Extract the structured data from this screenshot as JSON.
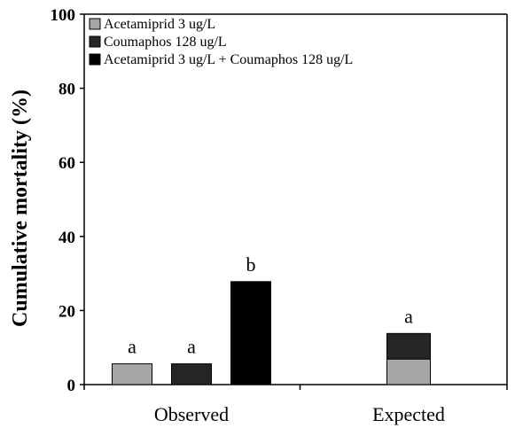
{
  "chart_data": {
    "type": "bar",
    "ylabel": "Cumulative mortality  (%)",
    "xlabel": "",
    "title": "",
    "ylim": [
      0,
      100
    ],
    "yticks": [
      0,
      20,
      40,
      60,
      80,
      100
    ],
    "categories": [
      "Observed",
      "Expected"
    ],
    "legend_position": "top-left",
    "series": [
      {
        "name": "Acetamiprid 3 ug/L",
        "color": "#a6a6a6"
      },
      {
        "name": "Coumaphos 128 ug/L",
        "color": "#262626"
      },
      {
        "name": "Acetamiprid 3 ug/L + Coumaphos 128 ug/L",
        "color": "#000000"
      }
    ],
    "bars": [
      {
        "category": "Observed",
        "series": "Acetamiprid 3 ug/L",
        "value": 5.6,
        "letter": "a"
      },
      {
        "category": "Observed",
        "series": "Coumaphos 128 ug/L",
        "value": 5.6,
        "letter": "a"
      },
      {
        "category": "Observed",
        "series": "Acetamiprid 3 ug/L + Coumaphos 128 ug/L",
        "value": 27.8,
        "letter": "b"
      }
    ],
    "stacked_bars": [
      {
        "category": "Expected",
        "letter": "a",
        "segments": [
          {
            "series": "Acetamiprid 3 ug/L",
            "value": 6.9
          },
          {
            "series": "Coumaphos 128 ug/L",
            "value": 6.9
          }
        ]
      }
    ]
  }
}
